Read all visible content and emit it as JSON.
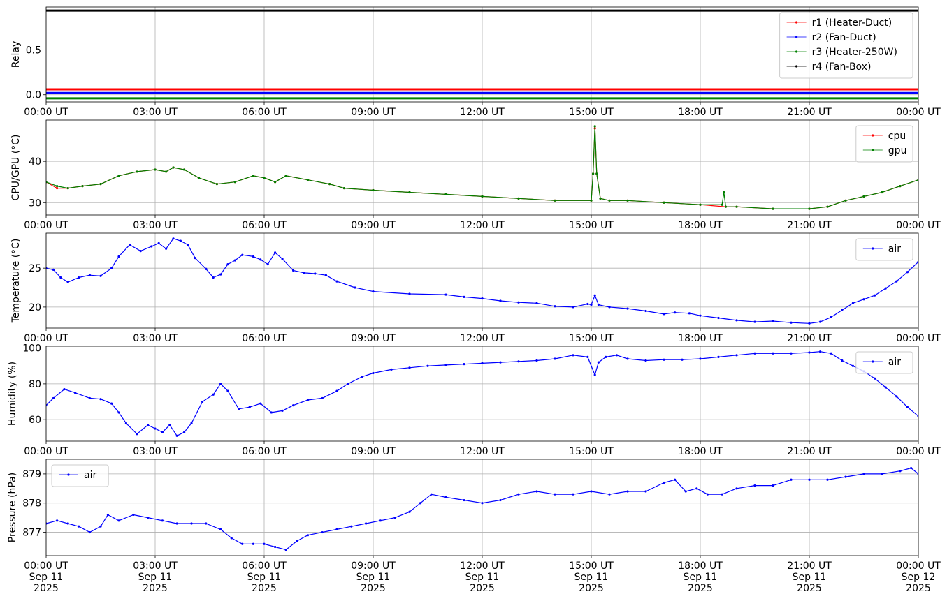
{
  "chart_data": [
    {
      "type": "line",
      "ylabel": "Relay",
      "ylim": [
        -0.08,
        0.98
      ],
      "yticks": [
        0.0,
        0.5
      ],
      "ytick_labels": [
        "0.0",
        "0.5"
      ],
      "xtick_labels": [
        "00:00 UT",
        "03:00 UT",
        "06:00 UT",
        "09:00 UT",
        "12:00 UT",
        "15:00 UT",
        "18:00 UT",
        "21:00 UT",
        "00:00 UT"
      ],
      "grid": true,
      "legend_position": "top-right",
      "series": [
        {
          "name": "r1 (Heater-Duct)",
          "color": "#ff0000",
          "x": [
            0,
            24
          ],
          "values": [
            0.06,
            0.06
          ]
        },
        {
          "name": "r2 (Fan-Duct)",
          "color": "#0000ff",
          "x": [
            0,
            24
          ],
          "values": [
            0.02,
            0.02
          ]
        },
        {
          "name": "r3 (Heater-250W)",
          "color": "#008000",
          "x": [
            0,
            24
          ],
          "values": [
            -0.04,
            -0.04
          ]
        },
        {
          "name": "r4 (Fan-Box)",
          "color": "#000000",
          "x": [
            0,
            24
          ],
          "values": [
            0.94,
            0.94
          ]
        }
      ]
    },
    {
      "type": "line",
      "ylabel": "CPU/GPU (°C)",
      "ylim": [
        27,
        50
      ],
      "yticks": [
        30,
        40
      ],
      "ytick_labels": [
        "30",
        "40"
      ],
      "xtick_labels": [
        "00:00 UT",
        "03:00 UT",
        "06:00 UT",
        "09:00 UT",
        "12:00 UT",
        "15:00 UT",
        "18:00 UT",
        "21:00 UT",
        "00:00 UT"
      ],
      "grid": true,
      "legend_position": "top-right",
      "series": [
        {
          "name": "cpu",
          "color": "#ff0000",
          "x": [
            0,
            0.3,
            0.6,
            1.0,
            1.5,
            2.0,
            2.5,
            3.0,
            3.3,
            3.5,
            3.8,
            4.2,
            4.7,
            5.2,
            5.7,
            6.0,
            6.3,
            6.6,
            7.2,
            7.8,
            8.2,
            9.0,
            10.0,
            11.0,
            12.0,
            13.0,
            14.0,
            15.0,
            15.05,
            15.1,
            15.15,
            15.25,
            15.5,
            16.0,
            17.0,
            18.0,
            18.7,
            19.0,
            20.0,
            21.0,
            21.5,
            22.0,
            22.5,
            23.0,
            23.5,
            24.0
          ],
          "values": [
            35,
            33.5,
            33.5,
            34,
            34.5,
            36.5,
            37.5,
            38,
            37.5,
            38.5,
            38,
            36,
            34.5,
            35,
            36.5,
            36,
            35,
            36.5,
            35.5,
            34.5,
            33.5,
            33,
            32.5,
            32,
            31.5,
            31,
            30.5,
            30.5,
            37,
            48,
            37,
            31,
            30.5,
            30.5,
            30,
            29.5,
            29,
            29,
            28.5,
            28.5,
            29,
            30.5,
            31.5,
            32.5,
            34,
            35.5
          ]
        },
        {
          "name": "gpu",
          "color": "#008000",
          "x": [
            0,
            0.3,
            0.6,
            1.0,
            1.5,
            2.0,
            2.5,
            3.0,
            3.3,
            3.5,
            3.8,
            4.2,
            4.7,
            5.2,
            5.7,
            6.0,
            6.3,
            6.6,
            7.2,
            7.8,
            8.2,
            9.0,
            10.0,
            11.0,
            12.0,
            13.0,
            14.0,
            15.0,
            15.05,
            15.1,
            15.15,
            15.25,
            15.5,
            16.0,
            17.0,
            18.0,
            18.6,
            18.65,
            18.7,
            19.0,
            20.0,
            21.0,
            21.5,
            22.0,
            22.5,
            23.0,
            23.5,
            24.0
          ],
          "values": [
            35,
            34,
            33.5,
            34,
            34.5,
            36.5,
            37.5,
            38,
            37.5,
            38.5,
            38,
            36,
            34.5,
            35,
            36.5,
            36,
            35,
            36.5,
            35.5,
            34.5,
            33.5,
            33,
            32.5,
            32,
            31.5,
            31,
            30.5,
            30.5,
            37,
            48.5,
            37,
            31,
            30.5,
            30.5,
            30,
            29.5,
            29.5,
            32.5,
            29,
            29,
            28.5,
            28.5,
            29,
            30.5,
            31.5,
            32.5,
            34,
            35.5
          ]
        }
      ]
    },
    {
      "type": "line",
      "ylabel": "Temperature (°C)",
      "ylim": [
        17.3,
        29.5
      ],
      "yticks": [
        20,
        25
      ],
      "ytick_labels": [
        "20",
        "25"
      ],
      "xtick_labels": [
        "00:00 UT",
        "03:00 UT",
        "06:00 UT",
        "09:00 UT",
        "12:00 UT",
        "15:00 UT",
        "18:00 UT",
        "21:00 UT",
        "00:00 UT"
      ],
      "grid": true,
      "legend_position": "top-right",
      "series": [
        {
          "name": "air",
          "color": "#0000ff",
          "x": [
            0,
            0.2,
            0.4,
            0.6,
            0.9,
            1.2,
            1.5,
            1.8,
            2.0,
            2.3,
            2.6,
            2.9,
            3.1,
            3.3,
            3.5,
            3.7,
            3.9,
            4.1,
            4.4,
            4.6,
            4.8,
            5.0,
            5.2,
            5.4,
            5.7,
            5.9,
            6.1,
            6.3,
            6.5,
            6.8,
            7.1,
            7.4,
            7.7,
            8.0,
            8.5,
            9.0,
            10.0,
            11.0,
            11.5,
            12.0,
            12.5,
            13.0,
            13.5,
            14.0,
            14.5,
            14.9,
            15.0,
            15.1,
            15.2,
            15.5,
            16.0,
            16.5,
            17.0,
            17.3,
            17.7,
            18.0,
            18.5,
            19.0,
            19.5,
            20.0,
            20.5,
            21.0,
            21.3,
            21.6,
            21.9,
            22.2,
            22.5,
            22.8,
            23.1,
            23.4,
            23.7,
            24.0
          ],
          "values": [
            25,
            24.8,
            23.8,
            23.2,
            23.8,
            24.1,
            24,
            25,
            26.5,
            28,
            27.2,
            27.8,
            28.2,
            27.5,
            28.8,
            28.5,
            28,
            26.3,
            24.9,
            23.8,
            24.2,
            25.5,
            26,
            26.7,
            26.5,
            26.1,
            25.5,
            27,
            26.2,
            24.7,
            24.4,
            24.3,
            24.1,
            23.3,
            22.5,
            22,
            21.7,
            21.6,
            21.3,
            21.1,
            20.8,
            20.6,
            20.5,
            20.1,
            20,
            20.4,
            20.3,
            21.5,
            20.3,
            20,
            19.8,
            19.5,
            19.1,
            19.3,
            19.2,
            18.9,
            18.6,
            18.3,
            18.1,
            18.2,
            18,
            17.9,
            18.1,
            18.7,
            19.6,
            20.5,
            21,
            21.5,
            22.4,
            23.3,
            24.5,
            25.8
          ]
        }
      ]
    },
    {
      "type": "line",
      "ylabel": "Humidity (%)",
      "ylim": [
        48,
        101
      ],
      "yticks": [
        60,
        80,
        100
      ],
      "ytick_labels": [
        "60",
        "80",
        "100"
      ],
      "xtick_labels": [
        "00:00 UT",
        "03:00 UT",
        "06:00 UT",
        "09:00 UT",
        "12:00 UT",
        "15:00 UT",
        "18:00 UT",
        "21:00 UT",
        "00:00 UT"
      ],
      "grid": true,
      "legend_position": "top-right",
      "series": [
        {
          "name": "air",
          "color": "#0000ff",
          "x": [
            0,
            0.2,
            0.5,
            0.8,
            1.2,
            1.5,
            1.8,
            2.0,
            2.2,
            2.5,
            2.8,
            3.0,
            3.2,
            3.4,
            3.6,
            3.8,
            4.0,
            4.3,
            4.6,
            4.8,
            5.0,
            5.3,
            5.6,
            5.9,
            6.2,
            6.5,
            6.8,
            7.2,
            7.6,
            8.0,
            8.3,
            8.7,
            9.0,
            9.5,
            10.0,
            10.5,
            11.0,
            11.5,
            12.0,
            12.5,
            13.0,
            13.5,
            14.0,
            14.5,
            14.9,
            15.1,
            15.2,
            15.4,
            15.7,
            16.0,
            16.5,
            17.0,
            17.5,
            18.0,
            18.5,
            19.0,
            19.5,
            20.0,
            20.5,
            21.0,
            21.3,
            21.6,
            21.9,
            22.2,
            22.5,
            22.8,
            23.1,
            23.4,
            23.7,
            24.0
          ],
          "values": [
            68,
            72,
            77,
            75,
            72,
            71.5,
            69,
            64,
            58,
            52,
            57,
            55,
            53,
            57,
            51,
            53,
            58,
            70,
            74,
            80,
            76,
            66,
            67,
            69,
            64,
            65,
            68,
            71,
            72,
            76,
            80,
            84,
            86,
            88,
            89,
            90,
            90.5,
            91,
            91.5,
            92,
            92.5,
            93,
            94,
            96,
            95,
            85,
            92,
            95,
            96,
            94,
            93,
            93.5,
            93.5,
            94,
            95,
            96,
            97,
            97,
            97,
            97.5,
            98,
            97,
            93,
            90,
            87,
            83,
            78,
            73,
            67,
            62
          ]
        }
      ]
    },
    {
      "type": "line",
      "ylabel": "Pressure (hPa)",
      "ylim": [
        876.2,
        879.5
      ],
      "yticks": [
        877,
        878,
        879
      ],
      "ytick_labels": [
        "877",
        "878",
        "879"
      ],
      "xtick_labels": [
        "00:00 UT\nSep 11\n2025",
        "03:00 UT\nSep 11\n2025",
        "06:00 UT\nSep 11\n2025",
        "09:00 UT\nSep 11\n2025",
        "12:00 UT\nSep 11\n2025",
        "15:00 UT\nSep 11\n2025",
        "18:00 UT\nSep 11\n2025",
        "21:00 UT\nSep 11\n2025",
        "00:00 UT\nSep 12\n2025"
      ],
      "grid": true,
      "legend_position": "top-left",
      "series": [
        {
          "name": "air",
          "color": "#0000ff",
          "x": [
            0,
            0.3,
            0.6,
            0.9,
            1.2,
            1.5,
            1.7,
            2.0,
            2.4,
            2.8,
            3.2,
            3.6,
            4.0,
            4.4,
            4.8,
            5.1,
            5.4,
            5.7,
            6.0,
            6.3,
            6.6,
            6.9,
            7.2,
            7.6,
            8.0,
            8.4,
            8.8,
            9.2,
            9.6,
            10.0,
            10.3,
            10.6,
            11.0,
            11.5,
            12.0,
            12.5,
            13.0,
            13.5,
            14.0,
            14.5,
            15.0,
            15.5,
            16.0,
            16.5,
            17.0,
            17.3,
            17.6,
            17.9,
            18.2,
            18.6,
            19.0,
            19.5,
            20.0,
            20.5,
            21.0,
            21.5,
            22.0,
            22.5,
            23.0,
            23.5,
            23.8,
            24.0
          ],
          "values": [
            877.3,
            877.4,
            877.3,
            877.2,
            877,
            877.2,
            877.6,
            877.4,
            877.6,
            877.5,
            877.4,
            877.3,
            877.3,
            877.3,
            877.1,
            876.8,
            876.6,
            876.6,
            876.6,
            876.5,
            876.4,
            876.7,
            876.9,
            877,
            877.1,
            877.2,
            877.3,
            877.4,
            877.5,
            877.7,
            878,
            878.3,
            878.2,
            878.1,
            878,
            878.1,
            878.3,
            878.4,
            878.3,
            878.3,
            878.4,
            878.3,
            878.4,
            878.4,
            878.7,
            878.8,
            878.4,
            878.5,
            878.3,
            878.3,
            878.5,
            878.6,
            878.6,
            878.8,
            878.8,
            878.8,
            878.9,
            879,
            879,
            879.1,
            879.2,
            879
          ]
        }
      ]
    }
  ]
}
